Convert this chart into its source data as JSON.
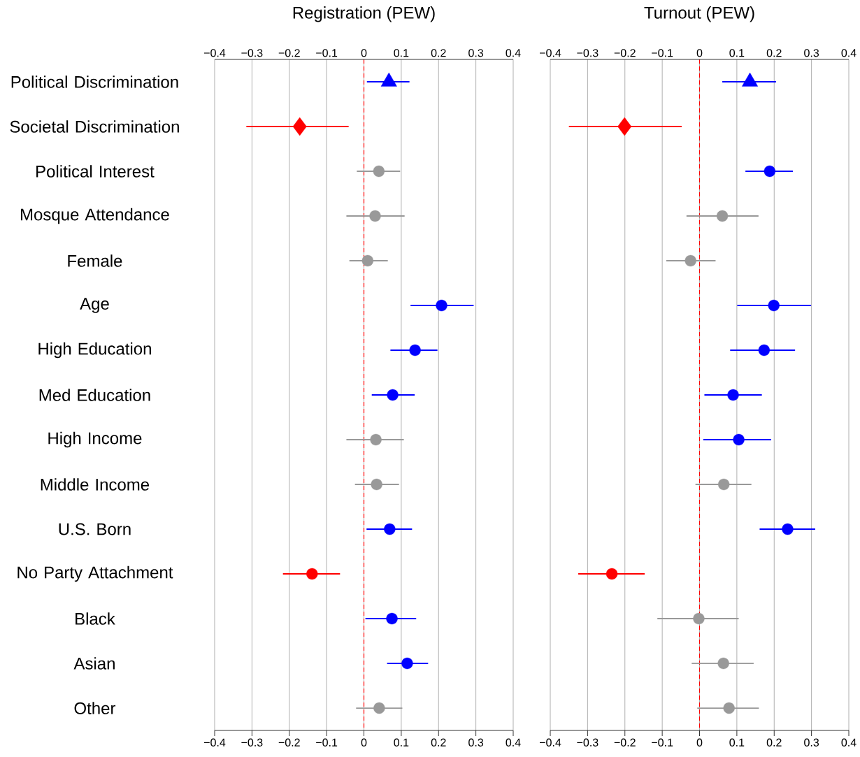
{
  "chart_data": [
    {
      "type": "scatter",
      "title": "Registration (PEW)",
      "orientation": "horizontal",
      "categories": [
        "Political Discrimination",
        "Societal Discrimination",
        "Political Interest",
        "Mosque Attendance",
        "Female",
        "Age",
        "High Education",
        "Med Education",
        "High Income",
        "Middle Income",
        "U.S. Born",
        "No Party Attachment",
        "Black",
        "Asian",
        "Other"
      ],
      "series": [
        {
          "marker": "triangle",
          "color": "#0000ff",
          "values": [
            0.067,
            null,
            null,
            null,
            null,
            null,
            null,
            null,
            null,
            null,
            null,
            null,
            null,
            null,
            null
          ],
          "errors": [
            [
              0.008,
              0.122
            ],
            null,
            null,
            null,
            null,
            null,
            null,
            null,
            null,
            null,
            null,
            null,
            null,
            null,
            null
          ]
        },
        {
          "marker": "diamond",
          "color": "#ff0000",
          "values": [
            null,
            -0.172,
            null,
            null,
            null,
            null,
            null,
            null,
            null,
            null,
            null,
            null,
            null,
            null,
            null
          ],
          "errors": [
            null,
            [
              -0.315,
              -0.041
            ],
            null,
            null,
            null,
            null,
            null,
            null,
            null,
            null,
            null,
            null,
            null,
            null,
            null
          ]
        },
        {
          "marker": "circle",
          "colors": [
            null,
            null,
            "#999999",
            "#999999",
            "#999999",
            "#0000ff",
            "#0000ff",
            "#0000ff",
            "#999999",
            "#999999",
            "#0000ff",
            "#ff0000",
            "#0000ff",
            "#0000ff",
            "#999999"
          ],
          "values": [
            null,
            null,
            0.04,
            0.03,
            0.01,
            0.208,
            0.137,
            0.077,
            0.032,
            0.034,
            0.069,
            -0.139,
            0.075,
            0.116,
            0.041
          ],
          "errors": [
            null,
            null,
            [
              -0.019,
              0.097
            ],
            [
              -0.047,
              0.109
            ],
            [
              -0.039,
              0.064
            ],
            [
              0.125,
              0.294
            ],
            [
              0.071,
              0.197
            ],
            [
              0.021,
              0.136
            ],
            [
              -0.047,
              0.107
            ],
            [
              -0.024,
              0.094
            ],
            [
              0.007,
              0.129
            ],
            [
              -0.217,
              -0.064
            ],
            [
              0.004,
              0.14
            ],
            [
              0.062,
              0.172
            ],
            [
              -0.021,
              0.103
            ]
          ]
        }
      ],
      "xlim": [
        -0.4,
        0.4
      ],
      "xticks": [
        {
          "value": -0.4,
          "label": "−0.4"
        },
        {
          "value": -0.3,
          "label": "−0.3"
        },
        {
          "value": -0.2,
          "label": "−0.2"
        },
        {
          "value": -0.1,
          "label": "−0.1"
        },
        0,
        0.1,
        0.2,
        0.3,
        0.4
      ],
      "x2lim": [
        -0.4,
        0.4
      ],
      "x2ticks": [
        {
          "value": -0.4,
          "label": "−0.4"
        },
        {
          "value": -0.3,
          "label": "−0.3"
        },
        {
          "value": -0.2,
          "label": "−0.2"
        },
        {
          "value": -0.1,
          "label": "−0.1"
        },
        0,
        0.1,
        0.2,
        0.3,
        0.4
      ],
      "grid": "x",
      "ref_lines": [
        {
          "axis": "x",
          "value": 0,
          "color": "#ff0000",
          "line_style": "dashed"
        }
      ]
    },
    {
      "type": "scatter",
      "title": "Turnout (PEW)",
      "orientation": "horizontal",
      "tick_labels": "x",
      "categories": [
        null,
        null,
        null,
        null,
        null,
        null,
        null,
        null,
        null,
        null,
        null,
        null,
        null,
        null,
        null
      ],
      "series": [
        {
          "marker": "triangle",
          "color": "#0000ff",
          "values": [
            0.135,
            null,
            null,
            null,
            null,
            null,
            null,
            null,
            null,
            null,
            null,
            null,
            null,
            null,
            null
          ],
          "errors": [
            [
              0.061,
              0.205
            ],
            null,
            null,
            null,
            null,
            null,
            null,
            null,
            null,
            null,
            null,
            null,
            null,
            null,
            null
          ]
        },
        {
          "marker": "diamond",
          "color": "#ff0000",
          "values": [
            null,
            -0.201,
            null,
            null,
            null,
            null,
            null,
            null,
            null,
            null,
            null,
            null,
            null,
            null,
            null
          ],
          "errors": [
            null,
            [
              -0.35,
              -0.048
            ],
            null,
            null,
            null,
            null,
            null,
            null,
            null,
            null,
            null,
            null,
            null,
            null,
            null
          ]
        },
        {
          "marker": "circle",
          "colors": [
            null,
            null,
            "#0000ff",
            "#999999",
            "#999999",
            "#0000ff",
            "#0000ff",
            "#0000ff",
            "#0000ff",
            "#999999",
            "#0000ff",
            "#ff0000",
            "#999999",
            "#999999",
            "#999999"
          ],
          "values": [
            null,
            null,
            0.188,
            0.061,
            -0.024,
            0.199,
            0.173,
            0.09,
            0.105,
            0.065,
            0.236,
            -0.235,
            -0.002,
            0.064,
            0.079
          ],
          "errors": [
            null,
            null,
            [
              0.123,
              0.25
            ],
            [
              -0.035,
              0.158
            ],
            [
              -0.089,
              0.043
            ],
            [
              0.101,
              0.299
            ],
            [
              0.082,
              0.256
            ],
            [
              0.013,
              0.167
            ],
            [
              0.01,
              0.192
            ],
            [
              -0.011,
              0.139
            ],
            [
              0.161,
              0.31
            ],
            [
              -0.325,
              -0.147
            ],
            [
              -0.113,
              0.105
            ],
            [
              -0.021,
              0.145
            ],
            [
              -0.006,
              0.159
            ]
          ]
        }
      ],
      "xlim": [
        -0.4,
        0.4
      ],
      "xticks": [
        {
          "value": -0.4,
          "label": "−0.4"
        },
        {
          "value": -0.3,
          "label": "−0.3"
        },
        {
          "value": -0.2,
          "label": "−0.2"
        },
        {
          "value": -0.1,
          "label": "−0.1"
        },
        0,
        0.1,
        0.2,
        0.3,
        0.4
      ],
      "x2lim": [
        -0.4,
        0.4
      ],
      "x2ticks": [
        {
          "value": -0.4,
          "label": "−0.4"
        },
        {
          "value": -0.3,
          "label": "−0.3"
        },
        {
          "value": -0.2,
          "label": "−0.2"
        },
        {
          "value": -0.1,
          "label": "−0.1"
        },
        0,
        0.1,
        0.2,
        0.3,
        0.4
      ],
      "grid": "x",
      "ref_lines": [
        {
          "axis": "x",
          "value": 0,
          "color": "#ff0000",
          "line_style": "dashed"
        }
      ]
    }
  ]
}
